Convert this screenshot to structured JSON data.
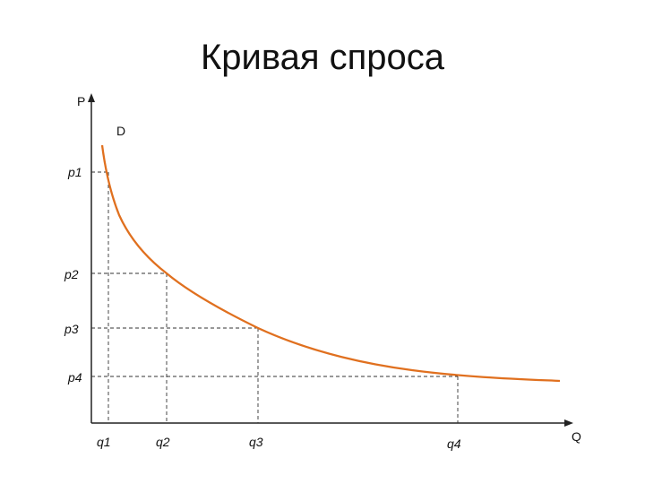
{
  "slide": {
    "title": "Кривая спроса"
  },
  "chart_data": {
    "type": "line",
    "title": "Кривая спроса",
    "xlabel": "Q",
    "ylabel": "P",
    "series": [
      {
        "name": "D",
        "curve": "demand",
        "points": [
          {
            "q": 0.6,
            "p": 1.16
          },
          {
            "q": "q1",
            "p": "p1"
          },
          {
            "q": "q2",
            "p": "p2"
          },
          {
            "q": "q3",
            "p": "p3"
          },
          {
            "q": "q4",
            "p": "p4"
          },
          {
            "q": 10.3,
            "p": 0.43
          }
        ]
      }
    ],
    "x_ticks": [
      "q1",
      "q2",
      "q3",
      "q4"
    ],
    "y_ticks": [
      "p1",
      "p2",
      "p3",
      "p4"
    ],
    "guide_lines": "dashed",
    "grid": false,
    "colors": {
      "curve": "#e0701f",
      "axes": "#222222",
      "guides": "#333333"
    }
  }
}
